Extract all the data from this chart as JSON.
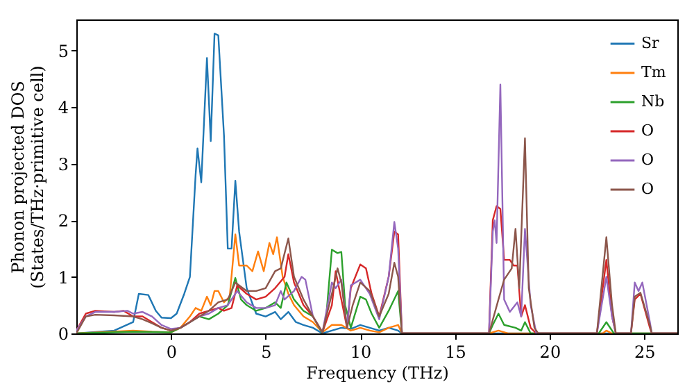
{
  "chart_data": {
    "type": "line",
    "xlabel": "Frequency (THz)",
    "ylabel": "Phonon projected DOS\n(States/THz·primitive cell)",
    "xlim": [
      -5,
      26.75
    ],
    "ylim": [
      0,
      5.55
    ],
    "xticks": [
      0,
      5,
      10,
      15,
      20,
      25
    ],
    "yticks": [
      0,
      1,
      2,
      3,
      4,
      5
    ],
    "grid": false,
    "legend": "top right",
    "marker": "none",
    "line_style": "solid",
    "series": [
      {
        "name": "Sr",
        "color": "#1f77b4",
        "x": [
          -5,
          -3,
          -2,
          -1.7,
          -1.2,
          -0.8,
          -0.5,
          0,
          0.3,
          0.7,
          1,
          1.3,
          1.4,
          1.6,
          1.9,
          2.1,
          2.3,
          2.5,
          2.8,
          3.0,
          3.2,
          3.4,
          3.6,
          4,
          4.5,
          5,
          5.5,
          5.8,
          6.2,
          6.6,
          7,
          7.5,
          8,
          8.5,
          9,
          9.5,
          10,
          10.5,
          11,
          11.5,
          12,
          12.2,
          26.75
        ],
        "values": [
          0,
          0.05,
          0.2,
          0.7,
          0.68,
          0.4,
          0.28,
          0.27,
          0.35,
          0.7,
          1.0,
          2.8,
          3.27,
          2.67,
          4.87,
          3.4,
          5.3,
          5.27,
          3.5,
          1.5,
          1.5,
          2.7,
          1.8,
          0.8,
          0.35,
          0.3,
          0.38,
          0.25,
          0.38,
          0.2,
          0.15,
          0.1,
          0,
          0.05,
          0.1,
          0.08,
          0.15,
          0.1,
          0.05,
          0.1,
          0.05,
          0,
          0
        ]
      },
      {
        "name": "Tm",
        "color": "#ff7f0e",
        "x": [
          -5,
          -2,
          -1,
          0,
          0.5,
          1,
          1.3,
          1.6,
          1.9,
          2.1,
          2.3,
          2.5,
          2.8,
          3.1,
          3.4,
          3.6,
          4,
          4.3,
          4.6,
          4.9,
          5.2,
          5.4,
          5.6,
          5.9,
          6.2,
          6.5,
          7,
          7.5,
          8,
          8.5,
          9,
          9.5,
          10,
          10.5,
          11,
          11.5,
          12,
          12.2,
          16.8,
          17.3,
          17.8,
          22.8,
          23,
          23.3,
          26.75
        ],
        "values": [
          0,
          0.05,
          0.03,
          0.02,
          0.1,
          0.3,
          0.45,
          0.4,
          0.65,
          0.5,
          0.75,
          0.75,
          0.55,
          0.65,
          1.75,
          1.2,
          1.2,
          1.1,
          1.45,
          1.1,
          1.6,
          1.4,
          1.7,
          1.0,
          0.7,
          0.5,
          0.3,
          0.2,
          0.02,
          0.15,
          0.15,
          0.05,
          0.1,
          0.05,
          0.02,
          0.1,
          0.15,
          0,
          0,
          0.05,
          0,
          0,
          0.05,
          0,
          0
        ]
      },
      {
        "name": "Nb",
        "color": "#2ca02c",
        "x": [
          -5,
          -2,
          0,
          0.5,
          1,
          1.5,
          2,
          2.5,
          3,
          3.4,
          3.7,
          4,
          4.5,
          5,
          5.5,
          5.8,
          6.1,
          6.5,
          7,
          7.5,
          8,
          8.2,
          8.5,
          8.8,
          9,
          9.2,
          9.5,
          10,
          10.3,
          10.6,
          11,
          11.5,
          12,
          12.2,
          16.8,
          17,
          17.3,
          17.6,
          18.2,
          18.5,
          18.7,
          19,
          22.6,
          23,
          23.4,
          26.75
        ],
        "values": [
          0,
          0.03,
          0.02,
          0.1,
          0.2,
          0.3,
          0.25,
          0.35,
          0.5,
          0.98,
          0.6,
          0.5,
          0.4,
          0.45,
          0.55,
          0.45,
          0.9,
          0.6,
          0.4,
          0.3,
          0,
          0.3,
          1.48,
          1.42,
          1.44,
          0.5,
          0.1,
          0.65,
          0.6,
          0.35,
          0.1,
          0.4,
          0.75,
          0,
          0,
          0.15,
          0.35,
          0.15,
          0.1,
          0.05,
          0.2,
          0,
          0,
          0.2,
          0,
          0
        ]
      },
      {
        "name": "O",
        "color": "#d62728",
        "x": [
          -5,
          -4.5,
          -4,
          -3,
          -2.5,
          -2,
          -1.5,
          -1,
          -0.5,
          0,
          0.5,
          1,
          1.5,
          2,
          2.5,
          2.8,
          3.2,
          3.5,
          4,
          4.5,
          5,
          5.5,
          6,
          6.2,
          6.5,
          7,
          7.5,
          8,
          8.5,
          8.7,
          9,
          9.3,
          9.5,
          10,
          10.3,
          10.6,
          11,
          11.5,
          11.8,
          12,
          12.2,
          16.8,
          17,
          17.2,
          17.4,
          17.6,
          17.9,
          18.1,
          18.3,
          18.5,
          18.7,
          19,
          19.3,
          22.5,
          23,
          23.3,
          23.5,
          24.3,
          24.5,
          24.8,
          25.3,
          25.4,
          26.75
        ],
        "values": [
          0.05,
          0.35,
          0.4,
          0.38,
          0.4,
          0.3,
          0.3,
          0.2,
          0.1,
          0.05,
          0.1,
          0.2,
          0.35,
          0.4,
          0.45,
          0.4,
          0.45,
          0.85,
          0.7,
          0.6,
          0.65,
          0.8,
          1.0,
          1.4,
          0.9,
          0.5,
          0.3,
          0.02,
          0.5,
          1.1,
          0.6,
          0.1,
          0.8,
          1.22,
          1.15,
          0.7,
          0.3,
          1.0,
          1.8,
          1.75,
          0,
          0,
          2.0,
          2.25,
          2.2,
          1.3,
          1.3,
          1.2,
          1.2,
          0.3,
          0.5,
          0.1,
          0,
          0,
          1.3,
          0.3,
          0,
          0,
          0.6,
          0.7,
          0.1,
          0,
          0
        ]
      },
      {
        "name": "O",
        "color": "#9467bd",
        "x": [
          -5,
          -4.5,
          -4,
          -3,
          -2.3,
          -2,
          -1.5,
          -1,
          -0.5,
          0,
          0.5,
          1,
          1.5,
          2,
          2.5,
          3,
          3.5,
          4,
          4.5,
          5,
          5.5,
          5.8,
          6,
          6.5,
          6.9,
          7.1,
          7.5,
          8,
          8.5,
          8.7,
          9,
          9.3,
          9.5,
          10,
          10.5,
          11,
          11.5,
          11.8,
          12,
          12.2,
          16.8,
          17,
          17.1,
          17.2,
          17.4,
          17.6,
          17.9,
          18.3,
          18.5,
          18.7,
          19,
          19.3,
          22.5,
          23,
          23.3,
          23.5,
          24.3,
          24.5,
          24.7,
          24.9,
          25.3,
          25.4,
          26.75
        ],
        "values": [
          0.05,
          0.3,
          0.38,
          0.38,
          0.4,
          0.35,
          0.38,
          0.3,
          0.15,
          0.08,
          0.1,
          0.2,
          0.3,
          0.35,
          0.45,
          0.5,
          0.75,
          0.55,
          0.45,
          0.45,
          0.5,
          0.75,
          0.6,
          0.75,
          1.0,
          0.95,
          0.3,
          0.02,
          0.9,
          0.8,
          0.95,
          0.1,
          0.85,
          0.95,
          0.7,
          0.25,
          1.0,
          1.97,
          1.5,
          0,
          0,
          1.8,
          2.0,
          1.6,
          4.4,
          0.6,
          0.38,
          0.55,
          0.3,
          1.85,
          0.5,
          0,
          0,
          1.0,
          0.3,
          0,
          0,
          0.9,
          0.75,
          0.9,
          0.2,
          0,
          0
        ]
      },
      {
        "name": "O",
        "color": "#8c564b",
        "x": [
          -5,
          -4.5,
          -4,
          -3,
          -2,
          -1.5,
          -1,
          -0.5,
          0,
          0.5,
          1,
          1.5,
          2,
          2.5,
          3,
          3.4,
          4,
          4.5,
          5,
          5.5,
          5.8,
          6.2,
          6.5,
          7,
          7.5,
          8,
          8.5,
          8.8,
          9,
          9.3,
          9.6,
          10,
          10.5,
          11,
          11.5,
          11.8,
          12,
          12.2,
          16.8,
          17.3,
          17.6,
          18,
          18.2,
          18.4,
          18.7,
          18.9,
          19.2,
          19.4,
          22.5,
          23,
          23.3,
          23.5,
          24.3,
          24.5,
          24.8,
          25.3,
          25.4,
          26.75
        ],
        "values": [
          0,
          0.3,
          0.33,
          0.32,
          0.3,
          0.25,
          0.18,
          0.1,
          0.05,
          0.1,
          0.2,
          0.3,
          0.4,
          0.55,
          0.6,
          0.9,
          0.75,
          0.75,
          0.8,
          1.1,
          1.15,
          1.68,
          1.0,
          0.6,
          0.3,
          0.02,
          0.7,
          1.15,
          0.9,
          0.1,
          0.5,
          0.9,
          0.75,
          0.3,
          0.7,
          1.25,
          1.0,
          0,
          0,
          0.6,
          0.95,
          1.15,
          1.85,
          0.8,
          3.45,
          0.8,
          0.1,
          0,
          0,
          1.7,
          0.5,
          0,
          0,
          0.65,
          0.72,
          0.15,
          0,
          0
        ]
      }
    ]
  }
}
